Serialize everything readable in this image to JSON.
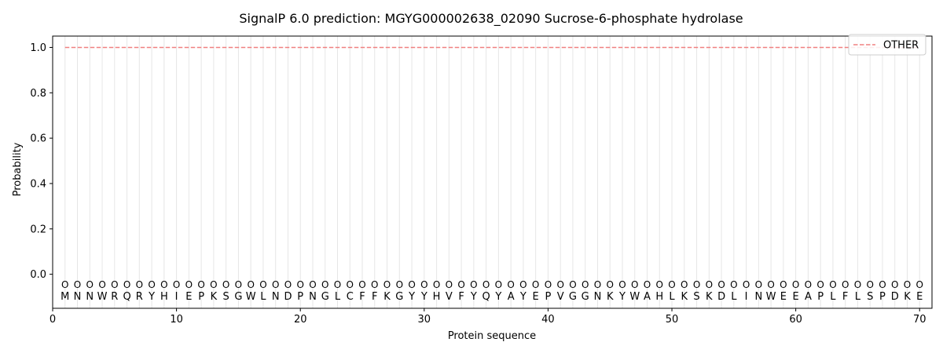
{
  "chart_data": {
    "type": "line",
    "title": "SignalP 6.0 prediction: MGYG000002638_02090 Sucrose-6-phosphate hydrolase",
    "xlabel": "Protein sequence",
    "ylabel": "Probability",
    "xlim": [
      0,
      71
    ],
    "ylim": [
      -0.15,
      1.05
    ],
    "x_ticks": [
      0,
      10,
      20,
      30,
      40,
      50,
      60,
      70
    ],
    "y_ticks": [
      0.0,
      0.2,
      0.4,
      0.6,
      0.8,
      1.0
    ],
    "y_tick_labels": [
      "0.0",
      "0.2",
      "0.4",
      "0.6",
      "0.8",
      "1.0"
    ],
    "grid": "vertical lines at each residue",
    "legend_position": "top-right",
    "sequence": [
      "M",
      "N",
      "N",
      "W",
      "R",
      "Q",
      "R",
      "Y",
      "H",
      "I",
      "E",
      "P",
      "K",
      "S",
      "G",
      "W",
      "L",
      "N",
      "D",
      "P",
      "N",
      "G",
      "L",
      "C",
      "F",
      "F",
      "K",
      "G",
      "Y",
      "Y",
      "H",
      "V",
      "F",
      "Y",
      "Q",
      "Y",
      "A",
      "Y",
      "E",
      "P",
      "V",
      "G",
      "G",
      "N",
      "K",
      "Y",
      "W",
      "A",
      "H",
      "L",
      "K",
      "S",
      "K",
      "D",
      "L",
      "I",
      "N",
      "W",
      "E",
      "E",
      "A",
      "P",
      "L",
      "F",
      "L",
      "S",
      "P",
      "D",
      "K",
      "E"
    ],
    "region_label": "O",
    "region_label_y": -0.045,
    "series": [
      {
        "name": "OTHER",
        "color": "#f08080",
        "style": "dashed",
        "x_range": [
          1,
          70
        ],
        "value": 1.0
      }
    ]
  }
}
